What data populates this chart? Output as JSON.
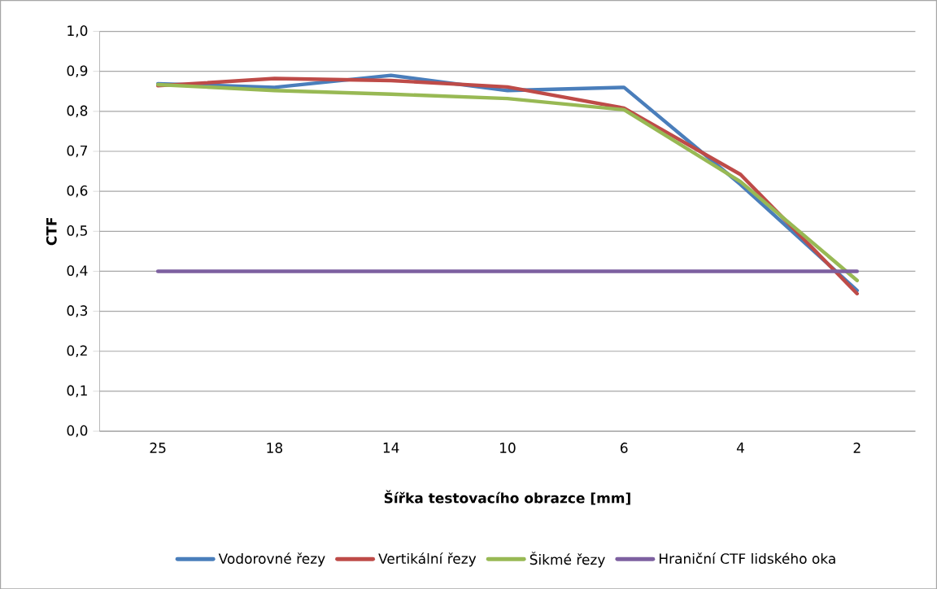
{
  "chart_data": {
    "type": "line",
    "xlabel": "Šířka testovacího obrazce [mm]",
    "ylabel": "CTF",
    "categories": [
      "25",
      "18",
      "14",
      "10",
      "6",
      "4",
      "2"
    ],
    "series": [
      {
        "name": "Vodorovné řezy",
        "color": "#4a7ebb",
        "values": [
          0.869,
          0.86,
          0.89,
          0.852,
          0.86,
          0.617,
          0.352
        ]
      },
      {
        "name": "Vertikální řezy",
        "color": "#be4b48",
        "values": [
          0.864,
          0.882,
          0.877,
          0.861,
          0.808,
          0.642,
          0.344
        ]
      },
      {
        "name": "Šikmé řezy",
        "color": "#98b954",
        "values": [
          0.867,
          0.852,
          0.843,
          0.832,
          0.804,
          0.624,
          0.377
        ]
      },
      {
        "name": "Hraniční CTF lidského oka",
        "color": "#7d60a0",
        "values": [
          0.4,
          0.4,
          0.4,
          0.4,
          0.4,
          0.4,
          0.4
        ]
      }
    ],
    "ylim": [
      0,
      1
    ],
    "yticks": [
      {
        "value": 0,
        "label": "0,0"
      },
      {
        "value": 0.1,
        "label": "0,1"
      },
      {
        "value": 0.2,
        "label": "0,2"
      },
      {
        "value": 0.3,
        "label": "0,3"
      },
      {
        "value": 0.4,
        "label": "0,4"
      },
      {
        "value": 0.5,
        "label": "0,5"
      },
      {
        "value": 0.6,
        "label": "0,6"
      },
      {
        "value": 0.7,
        "label": "0,7"
      },
      {
        "value": 0.8,
        "label": "0,8"
      },
      {
        "value": 0.9,
        "label": "0,9"
      },
      {
        "value": 1,
        "label": "1,0"
      }
    ],
    "grid": "y",
    "legend": "bottom",
    "marker": "none",
    "line_style": "solid"
  }
}
